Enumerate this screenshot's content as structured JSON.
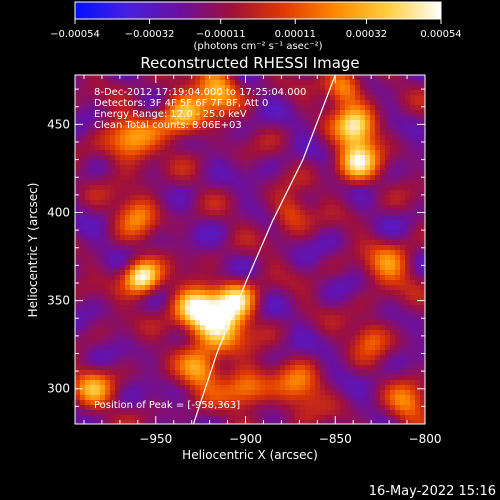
{
  "chart_data": {
    "type": "heatmap",
    "title": "Reconstructed RHESSI Image",
    "xlabel": "Heliocentric X (arcsec)",
    "ylabel": "Heliocentric Y (arcsec)",
    "xlim": [
      -995,
      -800
    ],
    "ylim": [
      280,
      478
    ],
    "x_ticks": [
      -950,
      -900,
      -850,
      -800
    ],
    "y_ticks": [
      300,
      350,
      400,
      450
    ],
    "x_tick_labels": [
      "−950",
      "−900",
      "−850",
      "−800"
    ],
    "y_tick_labels": [
      "300",
      "350",
      "400",
      "450"
    ],
    "colorbar": {
      "range": [
        -0.00054,
        0.00054
      ],
      "ticks": [
        -0.00054,
        -0.00032,
        -0.00011,
        0.00011,
        0.00032,
        0.00054
      ],
      "tick_labels": [
        "−0.00054",
        "−0.00032",
        "−0.00011",
        "0.00011",
        "0.00032",
        "0.00054"
      ],
      "colors": [
        "#0010ff",
        "#4820e0",
        "#6a10a0",
        "#a0103a",
        "#e03a00",
        "#ff8a00",
        "#ffd040",
        "#ffffff"
      ]
    },
    "unit_text": "(photons cm⁻² s⁻¹ asec⁻²)",
    "info_lines": [
      "8-Dec-2012 17:19:04.000 to 17:25:04.000",
      "Detectors: 3F 4F 5F 6F 7F 8F, Att 0",
      "Energy Range: 12.0 - 25.0 keV",
      "Clean     Total counts: 8.06E+03"
    ],
    "peak_text": "Position of Peak = [-958,363]",
    "peak": [
      -958,
      363
    ],
    "bright_sources": [
      {
        "x": -958,
        "y": 363,
        "amp": 0.00054,
        "sigma": 7
      },
      {
        "x": -928,
        "y": 345,
        "amp": 0.00042,
        "sigma": 9
      },
      {
        "x": -915,
        "y": 335,
        "amp": 0.0004,
        "sigma": 10
      },
      {
        "x": -905,
        "y": 350,
        "amp": 0.00036,
        "sigma": 8
      },
      {
        "x": -925,
        "y": 310,
        "amp": 0.00028,
        "sigma": 8
      },
      {
        "x": -900,
        "y": 300,
        "amp": 0.00024,
        "sigma": 9
      },
      {
        "x": -935,
        "y": 455,
        "amp": 0.00036,
        "sigma": 9
      },
      {
        "x": -915,
        "y": 470,
        "amp": 0.00034,
        "sigma": 8
      },
      {
        "x": -838,
        "y": 448,
        "amp": 0.00046,
        "sigma": 8
      },
      {
        "x": -838,
        "y": 428,
        "amp": 0.0004,
        "sigma": 8
      },
      {
        "x": -845,
        "y": 470,
        "amp": 0.0003,
        "sigma": 7
      },
      {
        "x": -965,
        "y": 440,
        "amp": 0.00026,
        "sigma": 10
      },
      {
        "x": -960,
        "y": 400,
        "amp": 0.0002,
        "sigma": 8
      },
      {
        "x": -985,
        "y": 300,
        "amp": 0.00022,
        "sigma": 8
      },
      {
        "x": -875,
        "y": 400,
        "amp": 0.00016,
        "sigma": 7
      },
      {
        "x": -870,
        "y": 300,
        "amp": 0.00018,
        "sigma": 9
      },
      {
        "x": -820,
        "y": 370,
        "amp": 0.00018,
        "sigma": 9
      },
      {
        "x": -810,
        "y": 290,
        "amp": 0.0002,
        "sigma": 8
      },
      {
        "x": -830,
        "y": 330,
        "amp": 0.00015,
        "sigma": 7
      }
    ],
    "limb": [
      [
        -929,
        280
      ],
      [
        -916,
        320
      ],
      [
        -900,
        360
      ],
      [
        -885,
        395
      ],
      [
        -868,
        430
      ],
      [
        -850,
        478
      ]
    ],
    "grid": false
  },
  "timestamp": "16-May-2022 15:16"
}
